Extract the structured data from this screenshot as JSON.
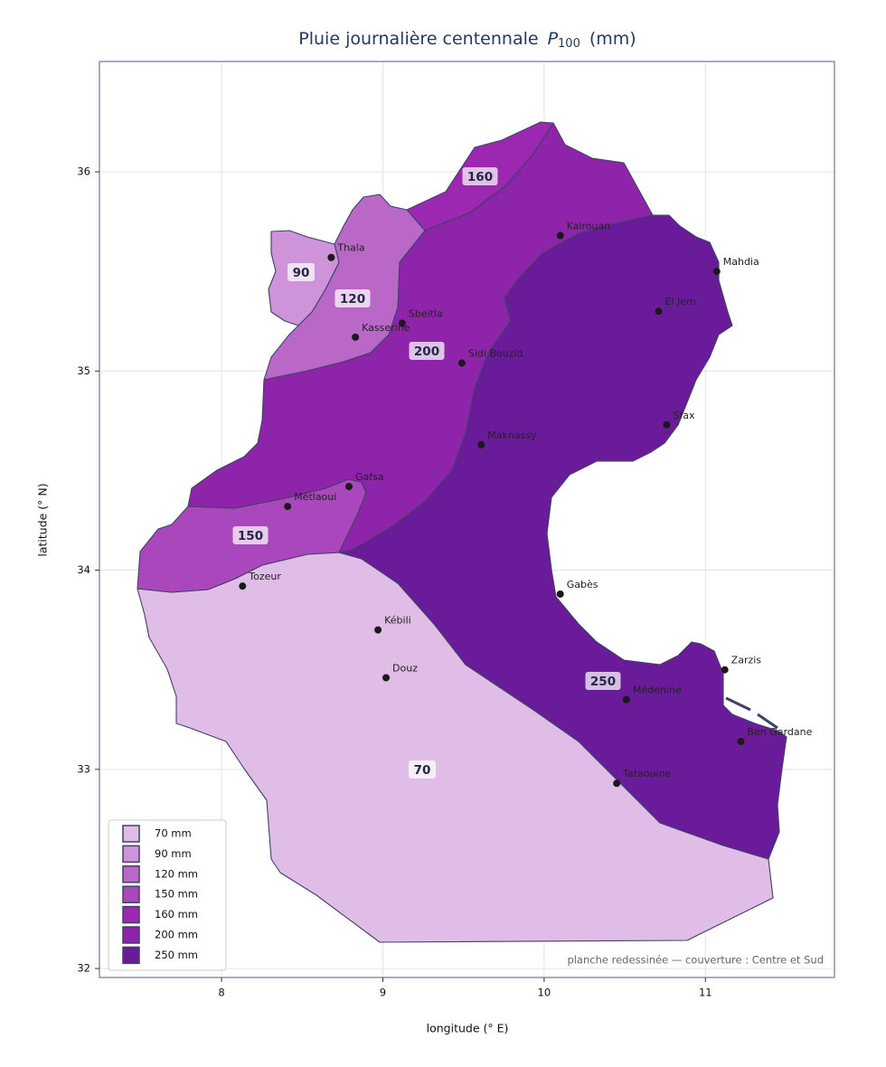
{
  "title": {
    "text": "Pluie journalière centennale",
    "symbol": "P",
    "subscript": "100",
    "unit": "(mm)"
  },
  "axes": {
    "xlabel": "longitude (° E)",
    "ylabel": "latitude (° N)",
    "xlim": [
      7.243,
      11.8
    ],
    "ylim": [
      31.955,
      36.554
    ],
    "xticks": [
      8,
      9,
      10,
      11
    ],
    "yticks": [
      32,
      33,
      34,
      35,
      36
    ],
    "grid": true
  },
  "zones": [
    {
      "label": "70",
      "legend": "70 mm",
      "color": "#e0bde6"
    },
    {
      "label": "90",
      "legend": "90 mm",
      "color": "#ce93d8"
    },
    {
      "label": "120",
      "legend": "120 mm",
      "color": "#ba68c8"
    },
    {
      "label": "150",
      "legend": "150 mm",
      "color": "#ab47bc"
    },
    {
      "label": "160",
      "legend": "160 mm",
      "color": "#9c27b0"
    },
    {
      "label": "200",
      "legend": "200 mm",
      "color": "#8e24aa"
    },
    {
      "label": "250",
      "legend": "250 mm",
      "color": "#6a1b9a"
    }
  ],
  "cities": [
    {
      "name": "Thala",
      "lon": 8.68,
      "lat": 35.57
    },
    {
      "name": "Kasserine",
      "lon": 8.83,
      "lat": 35.17
    },
    {
      "name": "Sbeitla",
      "lon": 9.12,
      "lat": 35.24
    },
    {
      "name": "Kairouan",
      "lon": 10.1,
      "lat": 35.68
    },
    {
      "name": "Mahdia",
      "lon": 11.07,
      "lat": 35.5
    },
    {
      "name": "El Jem",
      "lon": 10.71,
      "lat": 35.3
    },
    {
      "name": "Sidi Bouzid",
      "lon": 9.49,
      "lat": 35.04
    },
    {
      "name": "Sfax",
      "lon": 10.76,
      "lat": 34.73
    },
    {
      "name": "Maknassy",
      "lon": 9.61,
      "lat": 34.63
    },
    {
      "name": "Gafsa",
      "lon": 8.79,
      "lat": 34.42
    },
    {
      "name": "Métlaoui",
      "lon": 8.41,
      "lat": 34.32
    },
    {
      "name": "Tozeur",
      "lon": 8.13,
      "lat": 33.92
    },
    {
      "name": "Gabès",
      "lon": 10.1,
      "lat": 33.88
    },
    {
      "name": "Kébili",
      "lon": 8.97,
      "lat": 33.7
    },
    {
      "name": "Douz",
      "lon": 9.02,
      "lat": 33.46
    },
    {
      "name": "Zarzis",
      "lon": 11.12,
      "lat": 33.5
    },
    {
      "name": "Médenine",
      "lon": 10.51,
      "lat": 33.35
    },
    {
      "name": "Ben Gardane",
      "lon": 11.22,
      "lat": 33.14
    },
    {
      "name": "Tataouine",
      "lon": 10.45,
      "lat": 32.93
    }
  ],
  "footnote": "planche redessinée — couverture : Centre et Sud"
}
